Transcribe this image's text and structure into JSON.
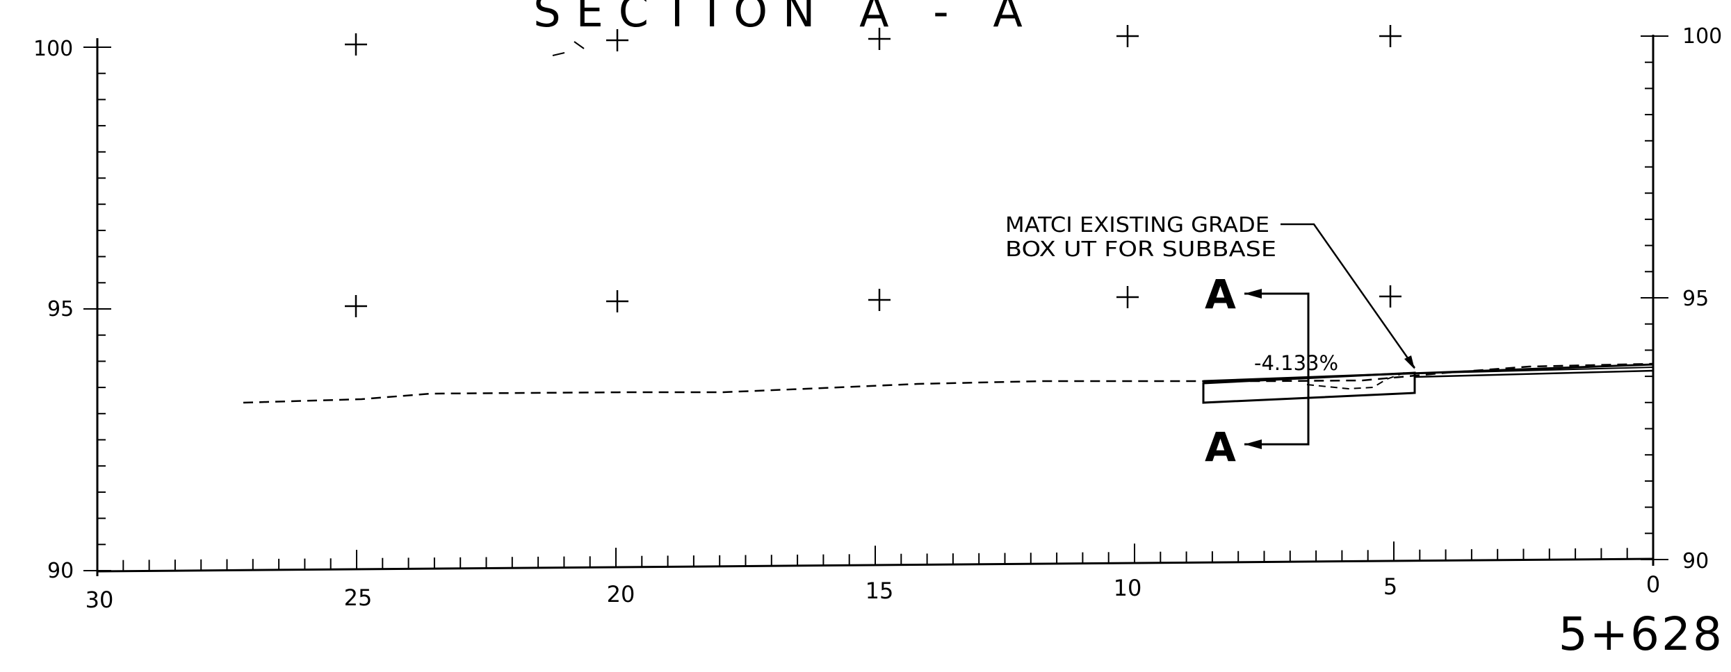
{
  "title": "SECTION A - A",
  "station": "5+628",
  "left_axis": {
    "labels": [
      "100",
      "95",
      "90"
    ]
  },
  "right_axis": {
    "labels": [
      "100",
      "95",
      "90"
    ]
  },
  "bottom_axis": {
    "labels": [
      "30",
      "25",
      "20",
      "15",
      "10",
      "5",
      "0"
    ]
  },
  "annotation": {
    "line1": "MATCI EXISTING GRADE",
    "line2": "BOX UT FOR SUBBASE"
  },
  "slope_label": "-4.133%",
  "section_marker_top": "A",
  "section_marker_bottom": "A"
}
